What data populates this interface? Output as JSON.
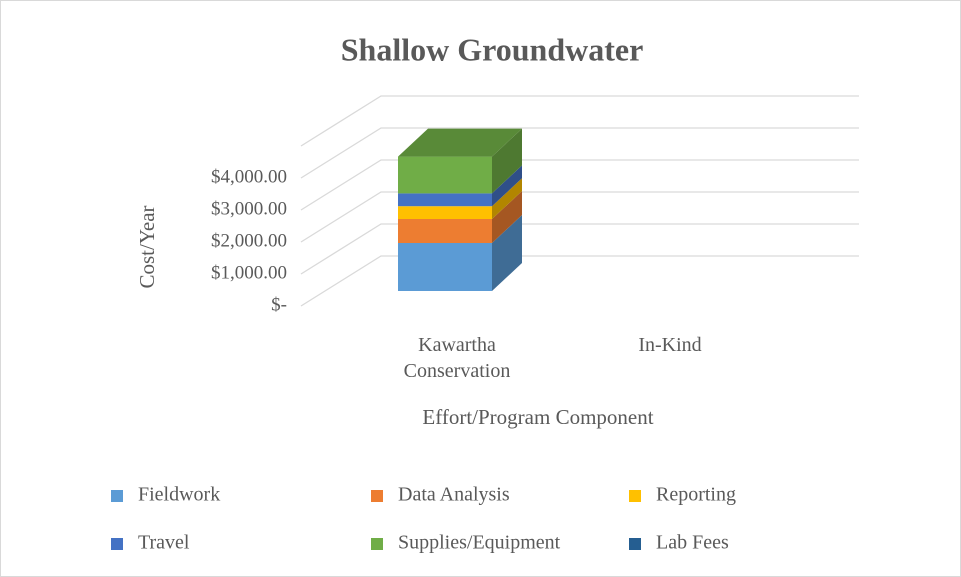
{
  "chart_data": {
    "type": "bar3d_stacked",
    "title": "Shallow Groundwater",
    "y_label": "Cost/Year",
    "x_label": "Effort/Program Component",
    "categories": [
      "Kawartha Conservation",
      "In-Kind"
    ],
    "series": [
      {
        "name": "Fieldwork",
        "color": "#5b9bd5",
        "values": [
          1500,
          0
        ]
      },
      {
        "name": "Data Analysis",
        "color": "#ed7d31",
        "values": [
          750,
          0
        ]
      },
      {
        "name": "Reporting",
        "color": "#ffc000",
        "values": [
          400,
          0
        ]
      },
      {
        "name": "Travel",
        "color": "#4472c4",
        "values": [
          400,
          0
        ]
      },
      {
        "name": "Supplies/Equipment",
        "color": "#70ad47",
        "values": [
          1150,
          0
        ]
      },
      {
        "name": "Lab Fees",
        "color": "#255e91",
        "values": [
          0,
          0
        ]
      }
    ],
    "ylim": [
      0,
      5000
    ],
    "yticks": [
      {
        "value": 0,
        "label": "$-"
      },
      {
        "value": 1000,
        "label": "$1,000.00"
      },
      {
        "value": 2000,
        "label": "$2,000.00"
      },
      {
        "value": 3000,
        "label": "$3,000.00"
      },
      {
        "value": 4000,
        "label": "$4,000.00"
      }
    ],
    "grid": true,
    "legend": "bottom"
  }
}
